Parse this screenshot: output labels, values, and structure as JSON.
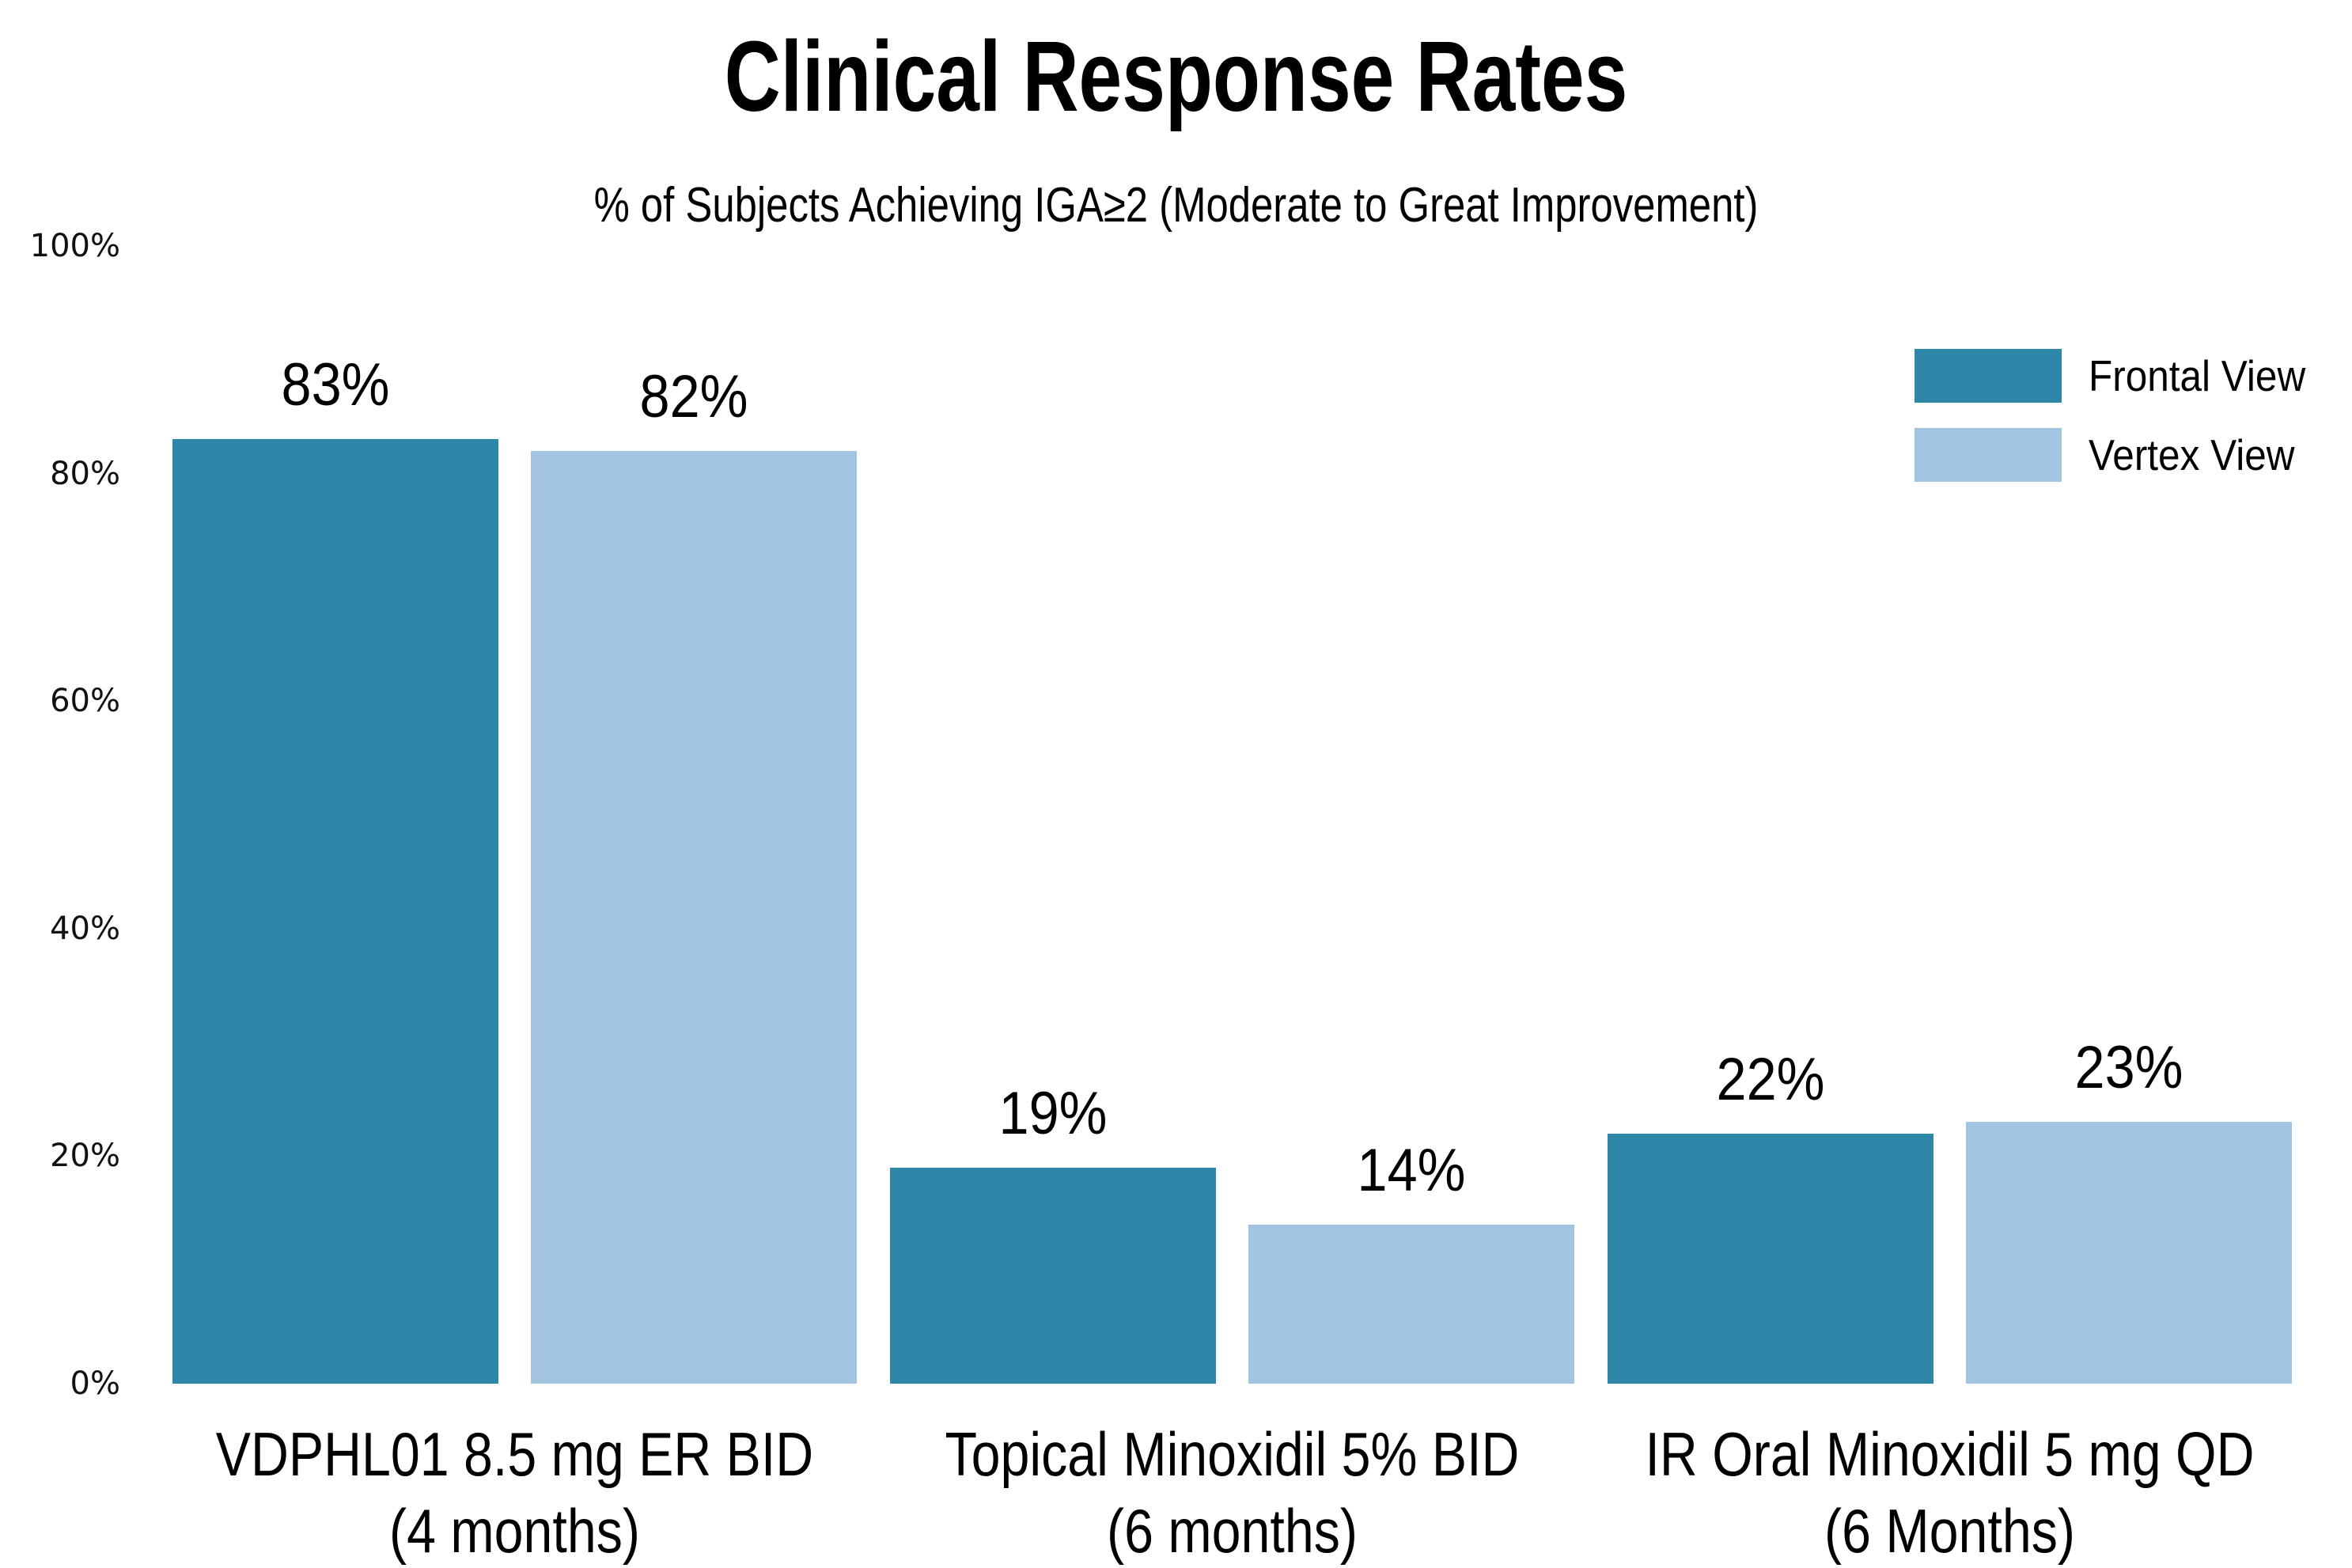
{
  "chart_data": {
    "type": "bar",
    "title": "Clinical Response Rates",
    "subtitle": "% of Subjects Achieving IGA≥2 (Moderate to Great Improvement)",
    "categories": [
      "VDPHL01 8.5 mg ER BID (4 months)",
      "Topical Minoxidil 5% BID (6 months)",
      "IR Oral Minoxidil 5 mg QD (6 Months)"
    ],
    "category_lines": [
      [
        "VDPHL01 8.5 mg ER BID",
        "(4 months)"
      ],
      [
        "Topical Minoxidil 5% BID",
        "(6 months)"
      ],
      [
        "IR Oral Minoxidil 5 mg QD",
        "(6 Months)"
      ]
    ],
    "series": [
      {
        "name": "Frontal View",
        "color": "#2E86A9",
        "values": [
          83,
          19,
          22
        ],
        "labels": [
          "83%",
          "19%",
          "22%"
        ]
      },
      {
        "name": "Vertex View",
        "color": "#A2C4E0",
        "values": [
          82,
          14,
          23
        ],
        "labels": [
          "82%",
          "14%",
          "23%"
        ]
      }
    ],
    "ylim": [
      0,
      100
    ],
    "yticks": [
      {
        "value": 0,
        "label": "0%"
      },
      {
        "value": 20,
        "label": "20%"
      },
      {
        "value": 40,
        "label": "40%"
      },
      {
        "value": 60,
        "label": "60%"
      },
      {
        "value": 80,
        "label": "80%"
      },
      {
        "value": 100,
        "label": "100%"
      }
    ],
    "grid": false,
    "axis_lines": false,
    "legend_position": "upper right"
  },
  "legend": {
    "items": [
      {
        "label": "Frontal View",
        "color": "#2E86A9"
      },
      {
        "label": "Vertex View",
        "color": "#A2C4E0"
      }
    ]
  }
}
